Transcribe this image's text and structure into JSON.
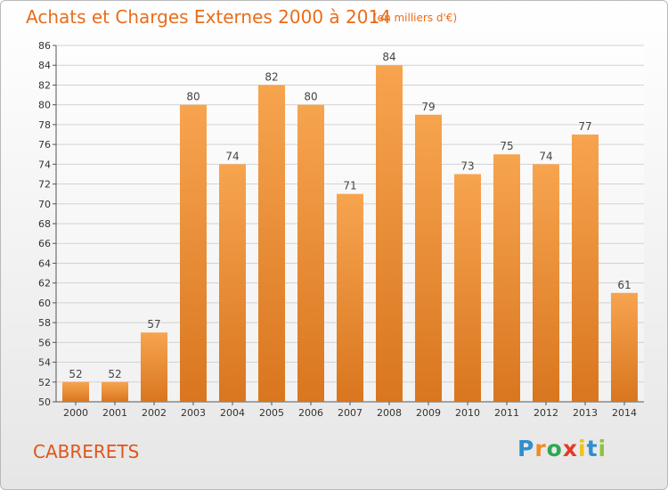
{
  "chart_data": {
    "type": "bar",
    "title": "Achats et Charges Externes 2000 à 2014",
    "subtitle": "(en milliers d'€)",
    "categories": [
      "2000",
      "2001",
      "2002",
      "2003",
      "2004",
      "2005",
      "2006",
      "2007",
      "2008",
      "2009",
      "2010",
      "2011",
      "2012",
      "2013",
      "2014"
    ],
    "values": [
      52,
      52,
      57,
      80,
      74,
      82,
      80,
      71,
      84,
      79,
      73,
      75,
      74,
      77,
      61
    ],
    "ylim": [
      50,
      86
    ],
    "yticks": [
      50,
      52,
      54,
      56,
      58,
      60,
      62,
      64,
      66,
      68,
      70,
      72,
      74,
      76,
      78,
      80,
      82,
      84,
      86
    ],
    "grid": true,
    "colors": {
      "bar_light": "#f7a44f",
      "bar_dark": "#d9761f",
      "grid": "#d2d2d2",
      "title": "#ea6c1a"
    }
  },
  "place_name": "CABRERETS",
  "logo": {
    "letters": [
      "P",
      "r",
      "o",
      "x",
      "i",
      "t",
      "i"
    ],
    "colors": [
      "#2f8fd0",
      "#f08a24",
      "#2fa84f",
      "#e23b2a",
      "#f0c21c",
      "#2f8fd0",
      "#8cc43c"
    ]
  }
}
